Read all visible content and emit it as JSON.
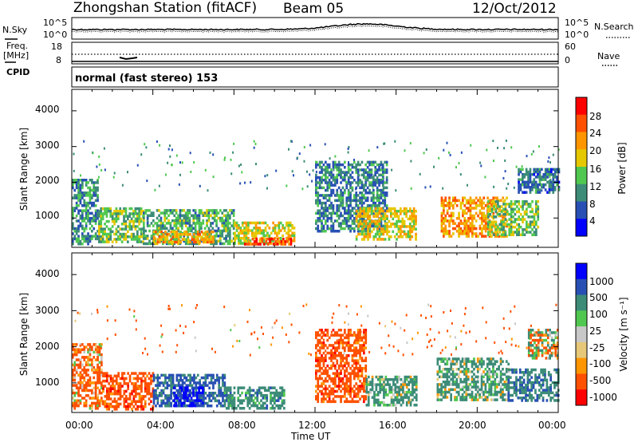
{
  "header": {
    "station": "Zhongshan Station (fitACF)",
    "beam": "Beam 05",
    "date": "12/Oct/2012"
  },
  "noise_panel": {
    "left_label": "N.Sky",
    "right_label": "N.Search",
    "left_ticks": [
      "10^5",
      "10^0"
    ],
    "right_ticks": [
      "10^5",
      "10^0"
    ]
  },
  "freq_panel": {
    "left_label_1": "Freq.",
    "left_label_2": "[MHz]",
    "left_ticks": [
      "18",
      "8"
    ],
    "right_label": "Nave",
    "right_ticks": [
      "60",
      "0"
    ],
    "cpid_label": "CPID",
    "cpid_text": "normal (fast stereo) 153"
  },
  "colors": {
    "power": [
      "#0000ff",
      "#2850b4",
      "#3c8c78",
      "#50c850",
      "#e6c800",
      "#ff9600",
      "#ff5000",
      "#ff0000"
    ],
    "velocity": [
      "#ff0000",
      "#ff5000",
      "#ff9600",
      "#e6c878",
      "#c8c8c8",
      "#50c850",
      "#3c8c78",
      "#2850b4",
      "#0000ff"
    ],
    "ground": "#a0a0a0"
  },
  "chart_data": [
    {
      "type": "heatmap",
      "name": "power",
      "xlabel": "",
      "ylabel": "Slant Range [km]",
      "x_ticks": [
        "00:00",
        "04:00",
        "08:00",
        "12:00",
        "16:00",
        "20:00",
        "00:00"
      ],
      "y_ticks": [
        "1000",
        "2000",
        "3000",
        "4000"
      ],
      "ylim": [
        180,
        4600
      ],
      "colorbar": {
        "label": "Power [dB]",
        "ticks": [
          "4",
          "8",
          "12",
          "16",
          "20",
          "24",
          "28"
        ],
        "range": [
          0,
          32
        ]
      },
      "regions": [
        {
          "t": [
            0.0,
            1.3
          ],
          "r": [
            300,
            2100
          ],
          "level": 10
        },
        {
          "t": [
            1.3,
            3.5
          ],
          "r": [
            300,
            1300
          ],
          "level": 14
        },
        {
          "t": [
            3.5,
            8.0
          ],
          "r": [
            300,
            1250
          ],
          "level": 12
        },
        {
          "t": [
            4.0,
            7.0
          ],
          "r": [
            300,
            650
          ],
          "level": 20
        },
        {
          "t": [
            8.0,
            11.0
          ],
          "r": [
            300,
            900
          ],
          "level": 18
        },
        {
          "t": [
            8.5,
            10.8
          ],
          "r": [
            300,
            450
          ],
          "level": 27
        },
        {
          "t": [
            12.0,
            15.5
          ],
          "r": [
            600,
            2600
          ],
          "level": 9
        },
        {
          "t": [
            14.0,
            17.0
          ],
          "r": [
            400,
            1300
          ],
          "level": 19
        },
        {
          "t": [
            18.2,
            21.5
          ],
          "r": [
            500,
            1600
          ],
          "level": 22
        },
        {
          "t": [
            20.5,
            23.0
          ],
          "r": [
            500,
            1500
          ],
          "level": 14
        },
        {
          "t": [
            22.0,
            24.0
          ],
          "r": [
            1700,
            2400
          ],
          "level": 8
        }
      ]
    },
    {
      "type": "heatmap",
      "name": "velocity",
      "xlabel": "Time UT",
      "ylabel": "Slant Range [km]",
      "x_ticks": [
        "00:00",
        "04:00",
        "08:00",
        "12:00",
        "16:00",
        "20:00",
        "00:00"
      ],
      "y_ticks": [
        "1000",
        "2000",
        "3000",
        "4000"
      ],
      "ylim": [
        180,
        4600
      ],
      "colorbar": {
        "label": "Velocity [m s⁻¹]",
        "ticks": [
          "1000",
          "500",
          "100",
          "25",
          "-25",
          "-100",
          "-500",
          "-1000"
        ]
      },
      "regions": [
        {
          "t": [
            0.0,
            1.5
          ],
          "r": [
            300,
            2100
          ],
          "vel": -200
        },
        {
          "t": [
            1.5,
            4.0
          ],
          "r": [
            300,
            1300
          ],
          "vel": -300
        },
        {
          "t": [
            4.0,
            7.5
          ],
          "r": [
            400,
            1250
          ],
          "vel": 600
        },
        {
          "t": [
            5.0,
            6.5
          ],
          "r": [
            400,
            900
          ],
          "vel": 1100
        },
        {
          "t": [
            7.5,
            10.5
          ],
          "r": [
            300,
            900
          ],
          "vel": 300
        },
        {
          "t": [
            12.0,
            14.5
          ],
          "r": [
            500,
            2500
          ],
          "vel": -300
        },
        {
          "t": [
            14.5,
            17.0
          ],
          "r": [
            400,
            1200
          ],
          "vel": 200
        },
        {
          "t": [
            18.0,
            21.5
          ],
          "r": [
            500,
            1700
          ],
          "vel": 200
        },
        {
          "t": [
            21.5,
            24.0
          ],
          "r": [
            500,
            1400
          ],
          "vel": 400
        },
        {
          "t": [
            22.5,
            24.0
          ],
          "r": [
            1700,
            2500
          ],
          "vel": 0
        }
      ]
    }
  ]
}
